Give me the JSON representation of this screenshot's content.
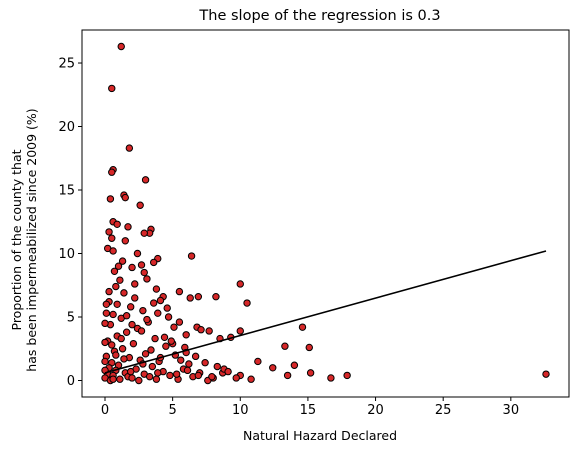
{
  "chart_data": {
    "type": "scatter",
    "title": "The slope of the regression is 0.3",
    "xlabel": "Natural Hazard Declared",
    "ylabel_lines": [
      "Proportion of the county that",
      "has been impermeabilized since 2009 (%)"
    ],
    "xlim": [
      -1.7,
      34.3
    ],
    "ylim": [
      -1.3,
      27.6
    ],
    "x_ticks": [
      0,
      5,
      10,
      15,
      20,
      25,
      30
    ],
    "y_ticks": [
      0,
      5,
      10,
      15,
      20,
      25
    ],
    "x_tick_labels": [
      "0",
      "5",
      "10",
      "15",
      "20",
      "25",
      "30"
    ],
    "y_tick_labels": [
      "0",
      "5",
      "10",
      "15",
      "20",
      "25"
    ],
    "grid": false,
    "marker_fill": "#d62728",
    "marker_edge": "#000000",
    "line_color": "#000000",
    "regression": {
      "x": [
        0,
        32.6
      ],
      "y": [
        0.6,
        10.2
      ]
    },
    "series": [
      {
        "points": [
          [
            1.2,
            26.3
          ],
          [
            0.5,
            23.0
          ],
          [
            1.8,
            18.3
          ],
          [
            0.6,
            16.6
          ],
          [
            0.5,
            16.4
          ],
          [
            3.0,
            15.8
          ],
          [
            1.4,
            14.6
          ],
          [
            1.5,
            14.4
          ],
          [
            0.4,
            14.3
          ],
          [
            2.6,
            13.8
          ],
          [
            0.6,
            12.5
          ],
          [
            0.9,
            12.3
          ],
          [
            1.7,
            12.1
          ],
          [
            0.3,
            11.7
          ],
          [
            3.4,
            11.9
          ],
          [
            3.3,
            11.6
          ],
          [
            2.9,
            11.6
          ],
          [
            0.5,
            11.2
          ],
          [
            1.5,
            11.0
          ],
          [
            0.2,
            10.4
          ],
          [
            0.6,
            10.2
          ],
          [
            6.4,
            9.8
          ],
          [
            3.9,
            9.6
          ],
          [
            3.6,
            9.3
          ],
          [
            2.7,
            9.1
          ],
          [
            1.0,
            9.0
          ],
          [
            2.0,
            8.9
          ],
          [
            2.9,
            8.5
          ],
          [
            3.1,
            8.0
          ],
          [
            10.0,
            7.6
          ],
          [
            5.5,
            7.0
          ],
          [
            4.3,
            6.6
          ],
          [
            4.1,
            6.3
          ],
          [
            8.2,
            6.6
          ],
          [
            6.9,
            6.6
          ],
          [
            6.3,
            6.5
          ],
          [
            10.5,
            6.1
          ],
          [
            3.9,
            5.3
          ],
          [
            4.7,
            5.0
          ],
          [
            5.5,
            4.6
          ],
          [
            6.8,
            4.2
          ],
          [
            7.1,
            4.0
          ],
          [
            7.7,
            3.9
          ],
          [
            10.0,
            3.9
          ],
          [
            8.5,
            3.3
          ],
          [
            9.3,
            3.4
          ],
          [
            6.0,
            3.6
          ],
          [
            14.6,
            4.2
          ],
          [
            13.3,
            2.7
          ],
          [
            15.1,
            2.6
          ],
          [
            11.3,
            1.5
          ],
          [
            12.4,
            1.0
          ],
          [
            14.0,
            1.2
          ],
          [
            15.2,
            0.6
          ],
          [
            17.9,
            0.4
          ],
          [
            16.7,
            0.2
          ],
          [
            13.5,
            0.4
          ],
          [
            10.0,
            0.4
          ],
          [
            10.8,
            0.1
          ],
          [
            8.7,
            0.6
          ],
          [
            8.8,
            0.9
          ],
          [
            32.6,
            0.5
          ],
          [
            1.1,
            7.9
          ],
          [
            0.8,
            7.4
          ],
          [
            1.4,
            6.9
          ],
          [
            2.2,
            6.5
          ],
          [
            0.3,
            6.2
          ],
          [
            1.9,
            5.8
          ],
          [
            2.8,
            5.5
          ],
          [
            0.6,
            5.2
          ],
          [
            1.2,
            4.9
          ],
          [
            3.2,
            4.6
          ],
          [
            0.4,
            4.4
          ],
          [
            2.4,
            4.1
          ],
          [
            1.6,
            3.8
          ],
          [
            0.9,
            3.5
          ],
          [
            3.7,
            3.3
          ],
          [
            0.2,
            3.1
          ],
          [
            2.1,
            2.9
          ],
          [
            4.5,
            2.7
          ],
          [
            1.3,
            2.5
          ],
          [
            0.7,
            2.3
          ],
          [
            3.0,
            2.1
          ],
          [
            5.2,
            2.0
          ],
          [
            0.1,
            1.9
          ],
          [
            1.8,
            1.8
          ],
          [
            2.6,
            1.6
          ],
          [
            4.0,
            1.5
          ],
          [
            0.5,
            1.4
          ],
          [
            6.2,
            1.3
          ],
          [
            1.0,
            1.2
          ],
          [
            3.5,
            1.1
          ],
          [
            0.3,
            1.0
          ],
          [
            2.3,
            0.9
          ],
          [
            5.8,
            0.9
          ],
          [
            0.8,
            0.8
          ],
          [
            4.3,
            0.7
          ],
          [
            1.5,
            0.6
          ],
          [
            7.0,
            0.6
          ],
          [
            0.2,
            0.5
          ],
          [
            2.9,
            0.5
          ],
          [
            0.6,
            0.4
          ],
          [
            4.8,
            0.4
          ],
          [
            1.7,
            0.3
          ],
          [
            3.3,
            0.3
          ],
          [
            6.5,
            0.3
          ],
          [
            0.0,
            0.2
          ],
          [
            2.0,
            0.2
          ],
          [
            8.0,
            0.2
          ],
          [
            1.1,
            0.1
          ],
          [
            3.8,
            0.1
          ],
          [
            5.4,
            0.1
          ],
          [
            0.4,
            0.0
          ],
          [
            2.5,
            0.0
          ],
          [
            7.6,
            0.0
          ],
          [
            0.0,
            1.5
          ],
          [
            0.0,
            3.0
          ],
          [
            0.0,
            4.5
          ],
          [
            0.1,
            6.0
          ],
          [
            0.0,
            0.8
          ],
          [
            1.3,
            9.4
          ],
          [
            2.4,
            10.0
          ],
          [
            0.7,
            8.6
          ],
          [
            3.8,
            7.2
          ],
          [
            4.6,
            5.7
          ],
          [
            5.1,
            4.2
          ],
          [
            5.9,
            2.6
          ],
          [
            6.7,
            1.9
          ],
          [
            7.4,
            1.4
          ],
          [
            8.3,
            1.1
          ],
          [
            9.1,
            0.7
          ],
          [
            0.9,
            6.0
          ],
          [
            1.6,
            5.1
          ],
          [
            2.7,
            3.9
          ],
          [
            3.4,
            2.4
          ],
          [
            4.1,
            1.8
          ],
          [
            0.5,
            2.8
          ],
          [
            1.9,
            0.7
          ],
          [
            2.2,
            7.6
          ],
          [
            3.6,
            6.1
          ],
          [
            4.4,
            3.4
          ],
          [
            5.0,
            2.9
          ],
          [
            5.6,
            1.6
          ],
          [
            6.1,
            0.8
          ],
          [
            0.3,
            7.0
          ],
          [
            1.4,
            1.7
          ],
          [
            2.8,
            1.3
          ],
          [
            3.1,
            4.8
          ],
          [
            4.9,
            3.1
          ],
          [
            6.0,
            2.2
          ],
          [
            0.8,
            2.0
          ],
          [
            1.2,
            3.3
          ],
          [
            2.0,
            4.4
          ],
          [
            0.1,
            5.3
          ],
          [
            3.9,
            0.6
          ],
          [
            5.3,
            0.5
          ],
          [
            6.9,
            0.4
          ],
          [
            7.9,
            0.3
          ],
          [
            9.7,
            0.2
          ],
          [
            0.6,
            0.1
          ]
        ]
      }
    ]
  }
}
